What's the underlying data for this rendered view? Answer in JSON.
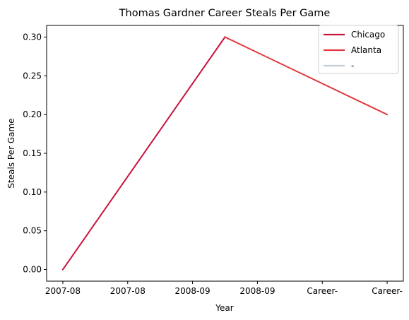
{
  "chart_data": {
    "type": "line",
    "title": "Thomas Gardner  Career Steals Per Game",
    "xlabel": "Year",
    "ylabel": "Steals Per Game",
    "categories": [
      "2007-08",
      "2007-08",
      "2008-09",
      "2008-09",
      "Career-",
      "Career-"
    ],
    "x_positions": [
      0,
      1,
      2,
      3,
      4,
      5
    ],
    "yticks": [
      0.0,
      0.05,
      0.1,
      0.15,
      0.2,
      0.25,
      0.3
    ],
    "ytick_labels": [
      "0.00",
      "0.05",
      "0.10",
      "0.15",
      "0.20",
      "0.25",
      "0.30"
    ],
    "ylim": [
      -0.015,
      0.315
    ],
    "xlim": [
      -0.25,
      5.25
    ],
    "grid": false,
    "legend_position": "top-right",
    "series": [
      {
        "name": "Chicago",
        "color": "#c8143c",
        "x": [
          0,
          2.5
        ],
        "y": [
          0.0,
          0.3
        ]
      },
      {
        "name": "Atlanta",
        "color": "#e03a3e",
        "x": [
          2.5,
          5
        ],
        "y": [
          0.3,
          0.2
        ]
      },
      {
        "name": "-",
        "color": "#c4ced4",
        "x": [],
        "y": []
      }
    ]
  }
}
